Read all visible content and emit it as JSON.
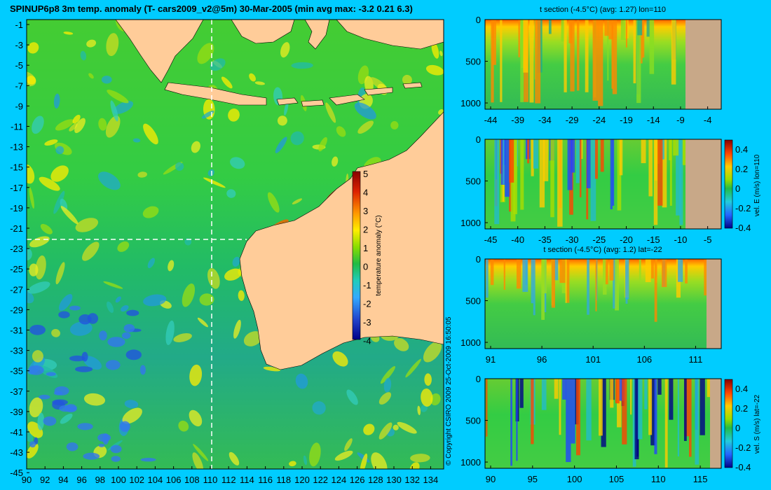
{
  "main_map": {
    "title": "SPINUP6p8 3m temp. anomaly (T- cars2009_v2@5m) 30-Mar-2005 (min avg max: -3.2 0.21 6.3)",
    "lat_ticks": [
      "-1",
      "-3",
      "-5",
      "-7",
      "-9",
      "-11",
      "-13",
      "-15",
      "-17",
      "-19",
      "-21",
      "-23",
      "-25",
      "-27",
      "-29",
      "-31",
      "-33",
      "-35",
      "-37",
      "-39",
      "-41",
      "-43",
      "-45"
    ],
    "lon_ticks": [
      "90",
      "92",
      "94",
      "96",
      "98",
      "100",
      "102",
      "104",
      "106",
      "108",
      "110",
      "112",
      "114",
      "116",
      "118",
      "120",
      "122",
      "124",
      "126",
      "128",
      "130",
      "132",
      "134"
    ],
    "colorbar": {
      "label": "temperature anomaly (°C)",
      "ticks": [
        "5",
        "4",
        "3",
        "2",
        "1",
        "0",
        "-1",
        "-2",
        "-3",
        "-4"
      ]
    },
    "copyright": "© Copyright CSIRO 2009   25-Oct-2009 16:50:05",
    "colors": {
      "land": "#ffcc99",
      "background": "#00ccff",
      "ocean_base": "#33cc33"
    }
  },
  "panels": [
    {
      "title": "t section (-4.5°C) (avg: 1.27) lon=110",
      "x_ticks": [
        "-44",
        "-39",
        "-34",
        "-29",
        "-24",
        "-19",
        "-14",
        "-9",
        "-4"
      ],
      "y_ticks": [
        "0",
        "500",
        "1000"
      ],
      "colorbar": null
    },
    {
      "title": "",
      "x_ticks": [
        "-45",
        "-40",
        "-35",
        "-30",
        "-25",
        "-20",
        "-15",
        "-10",
        "-5"
      ],
      "y_ticks": [
        "0",
        "500",
        "1000"
      ],
      "colorbar": {
        "label": "vel. E (m/s) lon=110",
        "ticks": [
          "0.4",
          "0.2",
          "0",
          "-0.2",
          "-0.4"
        ]
      }
    },
    {
      "title": "t section (-4.5°C) (avg: 1.2) lat=-22",
      "x_ticks": [
        "91",
        "96",
        "101",
        "106",
        "111"
      ],
      "y_ticks": [
        "0",
        "500",
        "1000"
      ],
      "colorbar": null
    },
    {
      "title": "",
      "x_ticks": [
        "90",
        "95",
        "100",
        "105",
        "110",
        "115"
      ],
      "y_ticks": [
        "0",
        "500",
        "1000"
      ],
      "colorbar": {
        "label": "vel. S (m/s) lat=-22",
        "ticks": [
          "0.4",
          "0.2",
          "0",
          "-0.2",
          "-0.4"
        ]
      }
    }
  ]
}
